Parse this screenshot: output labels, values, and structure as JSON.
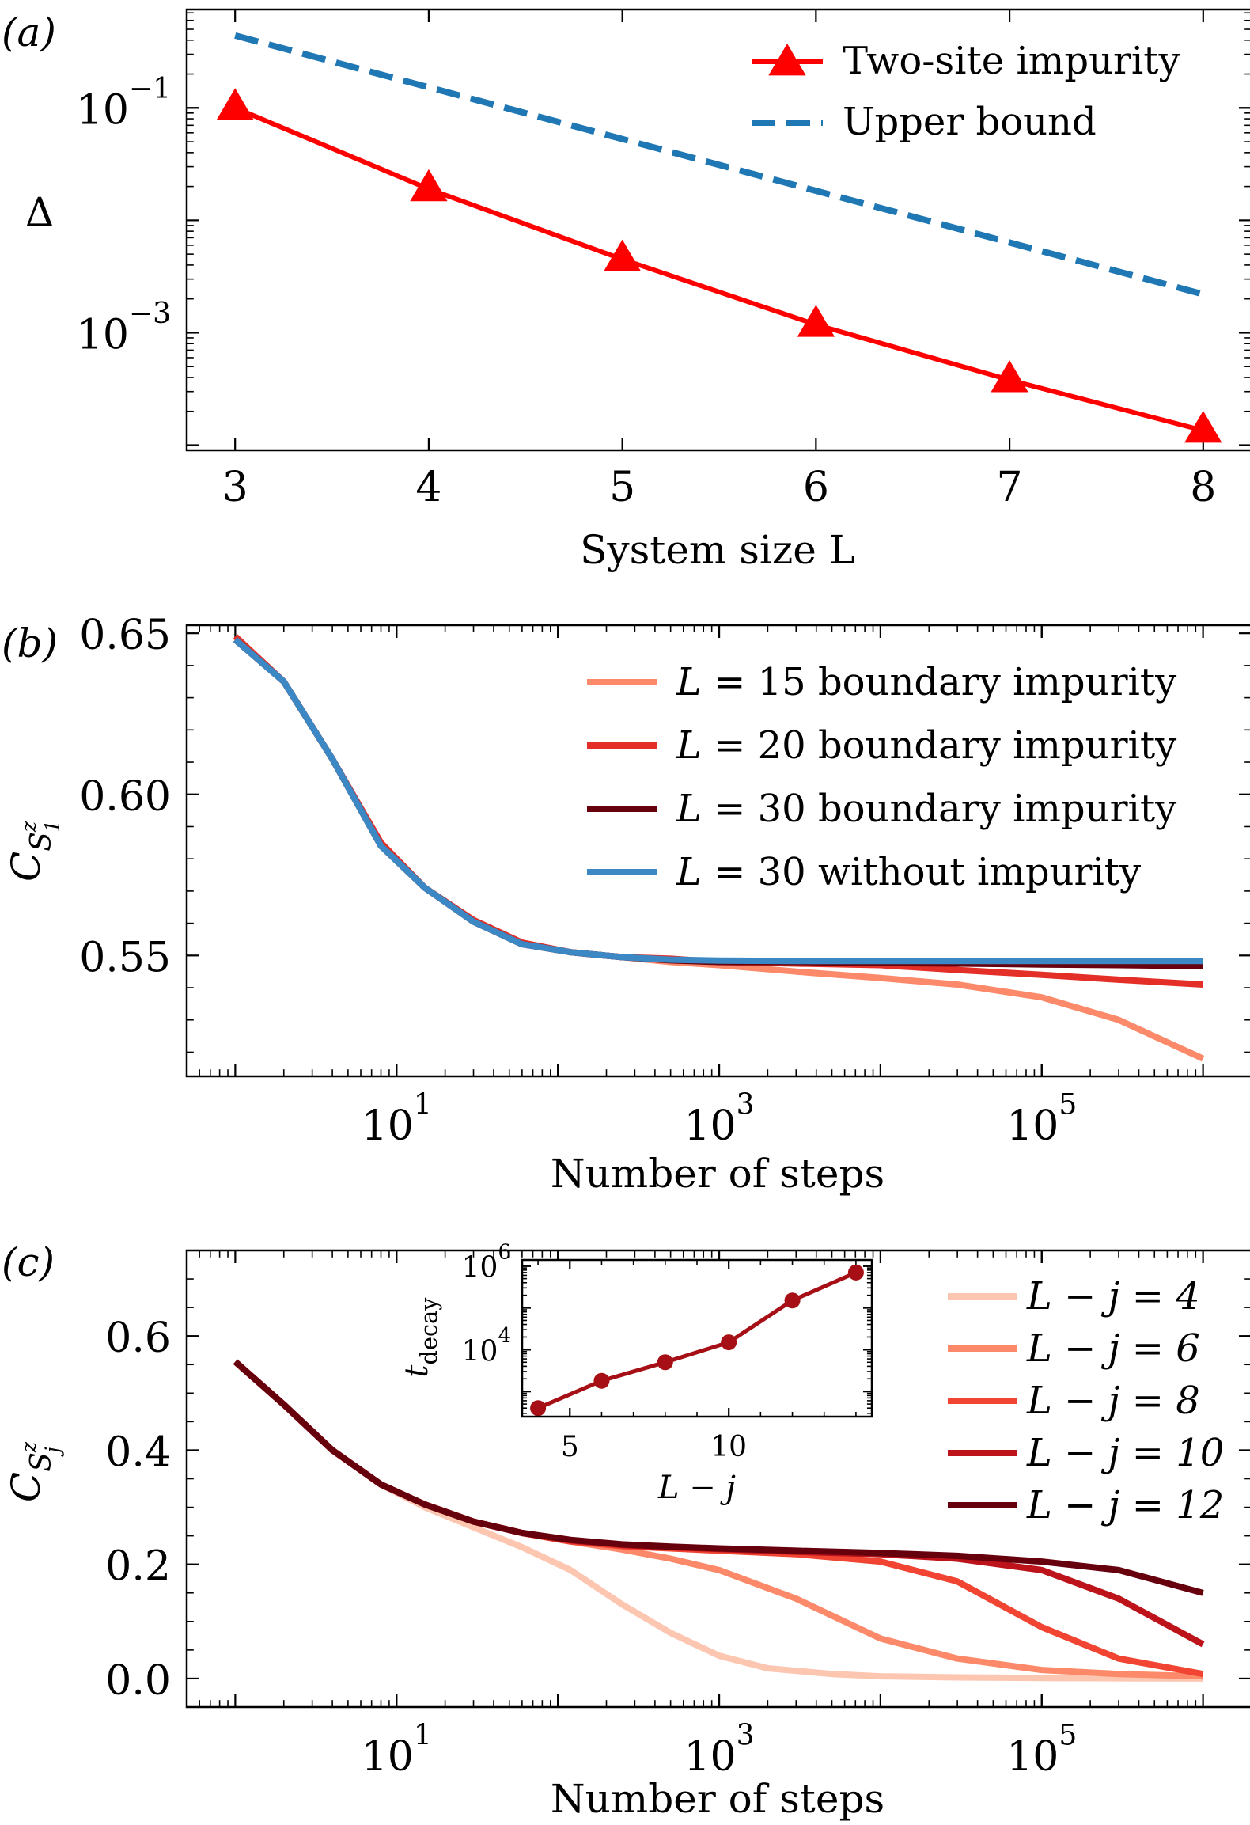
{
  "chart_data": [
    {
      "type": "line",
      "panel_label": "(a)",
      "xlabel": "System size L",
      "ylabel": "Δ",
      "xscale": "linear",
      "yscale": "log",
      "xlim": [
        2.75,
        8.25
      ],
      "ylim": [
        9e-05,
        0.75
      ],
      "xticks": [
        3,
        4,
        5,
        6,
        7,
        8
      ],
      "xtick_labels": [
        "3",
        "4",
        "5",
        "6",
        "7",
        "8"
      ],
      "yticks": [
        0.1,
        0.001
      ],
      "ytick_labels": [
        {
          "base": "10",
          "exp": "−1"
        },
        {
          "base": "10",
          "exp": "−3"
        }
      ],
      "legend_position": "top-right",
      "series": [
        {
          "name": "Two-site impurity",
          "color": "#ff0000",
          "style": "solid",
          "marker": "triangle",
          "x": [
            3,
            4,
            5,
            6,
            7,
            8
          ],
          "y": [
            0.1,
            0.019,
            0.0045,
            0.00118,
            0.00038,
            0.000135
          ]
        },
        {
          "name": "Upper bound",
          "color": "#1f77b4",
          "style": "dashed",
          "marker": "none",
          "x": [
            3,
            8
          ],
          "y": [
            0.44,
            0.0022
          ]
        }
      ]
    },
    {
      "type": "line",
      "panel_label": "(b)",
      "xlabel": "Number of steps",
      "ylabel": {
        "main": "C",
        "sub": "S",
        "subsup": "z",
        "subsub": "1"
      },
      "xscale": "log",
      "yscale": "linear",
      "xlim": [
        0.5,
        2000000
      ],
      "ylim": [
        0.5125,
        0.6525
      ],
      "xticks": [
        10,
        1000,
        100000
      ],
      "xtick_labels": [
        {
          "base": "10",
          "exp": "1"
        },
        {
          "base": "10",
          "exp": "3"
        },
        {
          "base": "10",
          "exp": "5"
        }
      ],
      "yticks": [
        0.55,
        0.6,
        0.65
      ],
      "ytick_labels": [
        "0.55",
        "0.60",
        "0.65"
      ],
      "legend_position": "top-right",
      "series": [
        {
          "name_prefix": "L",
          "name_rest": " = 15 boundary impurity",
          "color": "#fc8a6a",
          "x": [
            1,
            2,
            4,
            8,
            15,
            30,
            60,
            120,
            250,
            500,
            1000,
            3000,
            10000,
            30000,
            100000,
            300000,
            1000000
          ],
          "y": [
            0.648,
            0.635,
            0.611,
            0.584,
            0.571,
            0.5605,
            0.5535,
            0.551,
            0.5495,
            0.548,
            0.547,
            0.545,
            0.543,
            0.541,
            0.537,
            0.53,
            0.518
          ]
        },
        {
          "name_prefix": "L",
          "name_rest": " = 20 boundary impurity",
          "color": "#e32f27",
          "x": [
            1,
            2,
            4,
            8,
            15,
            30,
            60,
            120,
            250,
            500,
            1000,
            3000,
            10000,
            30000,
            100000,
            300000,
            1000000
          ],
          "y": [
            0.649,
            0.635,
            0.611,
            0.585,
            0.571,
            0.561,
            0.554,
            0.551,
            0.5495,
            0.549,
            0.548,
            0.5475,
            0.547,
            0.5455,
            0.544,
            0.5425,
            0.541
          ]
        },
        {
          "name_prefix": "L",
          "name_rest": " = 30 boundary impurity",
          "color": "#67000d",
          "x": [
            1,
            2,
            4,
            8,
            15,
            30,
            60,
            120,
            250,
            500,
            1000,
            3000,
            10000,
            30000,
            100000,
            300000,
            1000000
          ],
          "y": [
            0.648,
            0.635,
            0.611,
            0.584,
            0.571,
            0.5605,
            0.5535,
            0.551,
            0.5495,
            0.5485,
            0.548,
            0.548,
            0.5477,
            0.5475,
            0.5472,
            0.547,
            0.5467
          ]
        },
        {
          "name_prefix": "L",
          "name_rest": " = 30 without impurity",
          "color": "#3b88c4",
          "x": [
            1,
            2,
            4,
            8,
            15,
            30,
            60,
            120,
            250,
            500,
            1000,
            3000,
            10000,
            30000,
            100000,
            300000,
            1000000
          ],
          "y": [
            0.648,
            0.635,
            0.611,
            0.584,
            0.571,
            0.5605,
            0.5535,
            0.551,
            0.5495,
            0.5487,
            0.5484,
            0.5483,
            0.5483,
            0.5483,
            0.5483,
            0.5483,
            0.5483
          ]
        }
      ]
    },
    {
      "type": "line",
      "panel_label": "(c)",
      "xlabel": "Number of steps",
      "ylabel": {
        "main": "C",
        "sub": "S",
        "subsup": "z",
        "subsub": "j"
      },
      "xscale": "log",
      "yscale": "linear",
      "xlim": [
        0.5,
        2000000
      ],
      "ylim": [
        -0.05,
        0.75
      ],
      "xticks": [
        10,
        1000,
        100000
      ],
      "xtick_labels": [
        {
          "base": "10",
          "exp": "1"
        },
        {
          "base": "10",
          "exp": "3"
        },
        {
          "base": "10",
          "exp": "5"
        }
      ],
      "yticks": [
        0.0,
        0.2,
        0.4,
        0.6
      ],
      "ytick_labels": [
        "0.0",
        "0.2",
        "0.4",
        "0.6"
      ],
      "legend_position": "right",
      "series": [
        {
          "name": "L − j = 4",
          "color": "#fcc6b0",
          "x": [
            1,
            2,
            4,
            8,
            15,
            30,
            60,
            120,
            250,
            500,
            1000,
            2000,
            5000,
            10000,
            30000,
            100000,
            300000,
            1000000
          ],
          "y": [
            0.555,
            0.48,
            0.4,
            0.34,
            0.3,
            0.265,
            0.23,
            0.19,
            0.13,
            0.08,
            0.04,
            0.018,
            0.008,
            0.004,
            0.002,
            0.001,
            0.0005,
            0.0
          ]
        },
        {
          "name": "L − j = 6",
          "color": "#fc8a6a",
          "x": [
            1,
            2,
            4,
            8,
            15,
            30,
            60,
            120,
            250,
            500,
            1000,
            3000,
            10000,
            30000,
            100000,
            300000,
            1000000
          ],
          "y": [
            0.555,
            0.48,
            0.4,
            0.34,
            0.305,
            0.275,
            0.255,
            0.24,
            0.226,
            0.21,
            0.19,
            0.14,
            0.07,
            0.035,
            0.015,
            0.008,
            0.004
          ]
        },
        {
          "name": "L − j = 8",
          "color": "#f14432",
          "x": [
            1,
            2,
            4,
            8,
            15,
            30,
            60,
            120,
            250,
            500,
            1000,
            3000,
            10000,
            30000,
            100000,
            300000,
            1000000
          ],
          "y": [
            0.555,
            0.48,
            0.4,
            0.34,
            0.305,
            0.275,
            0.255,
            0.24,
            0.232,
            0.228,
            0.224,
            0.218,
            0.205,
            0.17,
            0.09,
            0.035,
            0.008
          ]
        },
        {
          "name": "L − j = 10",
          "color": "#bc141a",
          "x": [
            1,
            2,
            4,
            8,
            15,
            30,
            60,
            120,
            250,
            500,
            1000,
            3000,
            10000,
            30000,
            100000,
            300000,
            1000000
          ],
          "y": [
            0.555,
            0.48,
            0.4,
            0.34,
            0.305,
            0.275,
            0.255,
            0.242,
            0.234,
            0.23,
            0.227,
            0.222,
            0.218,
            0.21,
            0.19,
            0.14,
            0.06
          ]
        },
        {
          "name": "L − j = 12",
          "color": "#67000d",
          "x": [
            1,
            2,
            4,
            8,
            15,
            30,
            60,
            120,
            250,
            500,
            1000,
            3000,
            10000,
            30000,
            100000,
            300000,
            1000000
          ],
          "y": [
            0.555,
            0.48,
            0.4,
            0.34,
            0.305,
            0.275,
            0.255,
            0.243,
            0.235,
            0.231,
            0.228,
            0.224,
            0.22,
            0.215,
            0.205,
            0.19,
            0.15
          ]
        }
      ],
      "inset": {
        "type": "line",
        "xlabel": "L − j",
        "ylabel": {
          "main": "t",
          "sub": "decay"
        },
        "xscale": "linear",
        "yscale": "log",
        "xlim": [
          3.5,
          14.5
        ],
        "ylim": [
          250,
          1400000
        ],
        "xticks": [
          5,
          10
        ],
        "xtick_labels": [
          "5",
          "10"
        ],
        "yticks": [
          10000,
          1000000
        ],
        "ytick_labels": [
          {
            "base": "10",
            "exp": "4"
          },
          {
            "base": "10",
            "exp": "6"
          }
        ],
        "series": [
          {
            "name": "t_decay",
            "color": "#a50f15",
            "marker": "circle",
            "x": [
              4,
              6,
              8,
              10,
              12,
              14
            ],
            "y": [
              400,
              1800,
              5000,
              15000,
              150000,
              700000
            ]
          }
        ]
      }
    }
  ]
}
